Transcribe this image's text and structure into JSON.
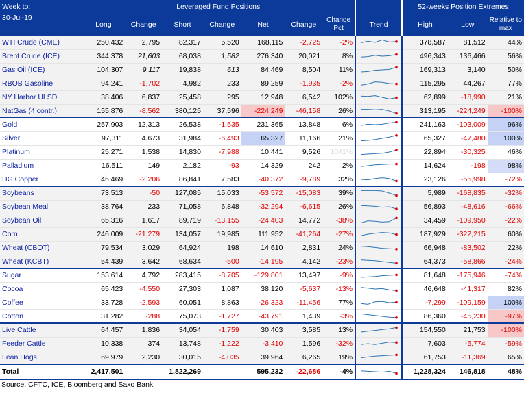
{
  "header": {
    "week_label": "Week to:",
    "week_date": "30-Jul-19",
    "group_title": "Leveraged Fund Positions",
    "extremes_title": "52-weeks Position Extremes",
    "columns": {
      "long": "Long",
      "change1": "Change",
      "short": "Short",
      "change2": "Change",
      "net": "Net",
      "change3": "Change",
      "change_pct_1": "Change",
      "change_pct_2": "Pct",
      "trend": "Trend",
      "high": "High",
      "low": "Low",
      "relative_1": "Relative to",
      "relative_2": "max"
    }
  },
  "rows": [
    {
      "name": "WTI Crude (CME)",
      "long": "250,432",
      "chg_long": "2,795",
      "short": "82,317",
      "chg_short": "5,520",
      "net": "168,115",
      "chg_net": "-2,725",
      "pct": "-2%",
      "high": "378,587",
      "low": "81,512",
      "rel": "44%",
      "group": 0,
      "trend": [
        0.55,
        0.35,
        0.5,
        0.2,
        0.45,
        0.4
      ]
    },
    {
      "name": "Brent Crude (ICE)",
      "long": "344,378",
      "chg_long": "21,603",
      "chg_long_italic": true,
      "short": "68,038",
      "chg_short": "1,582",
      "chg_short_italic": true,
      "net": "276,340",
      "chg_net": "20,021",
      "pct": "8%",
      "high": "496,343",
      "low": "136,466",
      "rel": "56%",
      "group": 0,
      "trend": [
        0.6,
        0.55,
        0.4,
        0.5,
        0.45,
        0.3
      ]
    },
    {
      "name": "Gas Oil (ICE)",
      "long": "104,307",
      "chg_long": "9,117",
      "chg_long_italic": true,
      "short": "19,838",
      "chg_short": "613",
      "chg_short_italic": true,
      "net": "84,469",
      "chg_net": "8,504",
      "pct": "11%",
      "high": "169,313",
      "low": "3,140",
      "rel": "50%",
      "group": 0,
      "trend": [
        0.75,
        0.7,
        0.55,
        0.5,
        0.45,
        0.2
      ]
    },
    {
      "name": "RBOB Gasoline",
      "long": "94,241",
      "chg_long": "-1,702",
      "short": "4,982",
      "chg_short": "233",
      "net": "89,259",
      "chg_net": "-1,935",
      "pct": "-2%",
      "high": "115,295",
      "low": "44,267",
      "rel": "77%",
      "group": 0,
      "trend": [
        0.7,
        0.55,
        0.3,
        0.35,
        0.5,
        0.55
      ]
    },
    {
      "name": "NY Harbor ULSD",
      "long": "38,406",
      "chg_long": "6,837",
      "short": "25,458",
      "chg_short": "295",
      "net": "12,948",
      "chg_net": "6,542",
      "pct": "102%",
      "high": "62,899",
      "low": "-18,990",
      "rel": "21%",
      "group": 0,
      "trend": [
        0.35,
        0.4,
        0.3,
        0.5,
        0.7,
        0.55
      ]
    },
    {
      "name": "NatGas (4 contr.)",
      "long": "155,876",
      "chg_long": "-8,562",
      "short": "380,125",
      "chg_short": "37,596",
      "net": "-224,249",
      "chg_net": "-46,158",
      "pct": "26%",
      "high": "313,195",
      "low": "-224,249",
      "rel": "-100%",
      "rel_hl": "red",
      "net_hl": "red",
      "group": 0,
      "trend": [
        0.3,
        0.3,
        0.35,
        0.3,
        0.5,
        0.8
      ]
    },
    {
      "name": "Gold",
      "long": "257,903",
      "chg_long": "12,313",
      "short": "26,538",
      "chg_short": "-1,535",
      "net": "231,365",
      "chg_net": "13,848",
      "pct": "6%",
      "high": "241,163",
      "low": "-103,009",
      "rel": "96%",
      "rel_hl": "blue",
      "group": 1,
      "start": true,
      "trend": [
        0.6,
        0.45,
        0.5,
        0.45,
        0.3,
        0.2
      ]
    },
    {
      "name": "Silver",
      "long": "97,311",
      "chg_long": "4,673",
      "short": "31,984",
      "chg_short": "-6,493",
      "net": "65,327",
      "chg_net": "11,166",
      "pct": "21%",
      "high": "65,327",
      "low": "-47,480",
      "rel": "100%",
      "rel_hl": "blue",
      "net_hl": "blue",
      "group": 1,
      "trend": [
        0.8,
        0.75,
        0.65,
        0.5,
        0.35,
        0.15
      ]
    },
    {
      "name": "Platinum",
      "long": "25,271",
      "chg_long": "1,538",
      "short": "14,830",
      "chg_short": "-7,988",
      "net": "10,441",
      "chg_net": "9,526",
      "pct": "1041%",
      "pct_ghost": true,
      "high": "22,894",
      "low": "-30,325",
      "rel": "46%",
      "group": 1,
      "trend": [
        0.8,
        0.75,
        0.7,
        0.65,
        0.5,
        0.25
      ]
    },
    {
      "name": "Palladium",
      "long": "16,511",
      "chg_long": "149",
      "short": "2,182",
      "chg_short": "-93",
      "net": "14,329",
      "chg_net": "242",
      "pct": "2%",
      "high": "14,624",
      "low": "-198",
      "rel": "98%",
      "rel_hl": "blue2",
      "group": 1,
      "trend": [
        0.6,
        0.5,
        0.4,
        0.35,
        0.3,
        0.3
      ]
    },
    {
      "name": "HG Copper",
      "long": "46,469",
      "chg_long": "-2,206",
      "short": "86,841",
      "chg_short": "7,583",
      "net": "-40,372",
      "chg_net": "-9,789",
      "pct": "32%",
      "high": "23,126",
      "low": "-55,998",
      "rel": "-72%",
      "group": 1,
      "trend": [
        0.5,
        0.55,
        0.4,
        0.3,
        0.4,
        0.7
      ]
    },
    {
      "name": "Soybeans",
      "long": "73,513",
      "chg_long": "-50",
      "short": "127,085",
      "chg_short": "15,033",
      "net": "-53,572",
      "chg_net": "-15,083",
      "pct": "39%",
      "high": "5,989",
      "low": "-168,835",
      "rel": "-32%",
      "group": 0,
      "start": true,
      "trend": [
        0.2,
        0.2,
        0.2,
        0.25,
        0.5,
        0.8
      ]
    },
    {
      "name": "Soybean Meal",
      "long": "38,764",
      "chg_long": "233",
      "short": "71,058",
      "chg_short": "6,848",
      "net": "-32,294",
      "chg_net": "-6,615",
      "pct": "26%",
      "high": "56,893",
      "low": "-48,616",
      "rel": "-66%",
      "group": 0,
      "trend": [
        0.35,
        0.4,
        0.45,
        0.55,
        0.5,
        0.75
      ]
    },
    {
      "name": "Soybean Oil",
      "long": "65,316",
      "chg_long": "1,617",
      "short": "89,719",
      "chg_short": "-13,155",
      "net": "-24,403",
      "chg_net": "14,772",
      "pct": "-38%",
      "high": "34,459",
      "low": "-109,950",
      "rel": "-22%",
      "group": 0,
      "trend": [
        0.8,
        0.55,
        0.6,
        0.7,
        0.65,
        0.2
      ]
    },
    {
      "name": "Corn",
      "long": "246,009",
      "chg_long": "-21,279",
      "short": "134,057",
      "chg_short": "19,985",
      "net": "111,952",
      "chg_net": "-41,264",
      "pct": "-27%",
      "high": "187,929",
      "low": "-322,215",
      "rel": "60%",
      "group": 0,
      "trend": [
        0.7,
        0.5,
        0.4,
        0.3,
        0.35,
        0.55
      ]
    },
    {
      "name": "Wheat (CBOT)",
      "long": "79,534",
      "chg_long": "3,029",
      "short": "64,924",
      "chg_short": "198",
      "net": "14,610",
      "chg_net": "2,831",
      "pct": "24%",
      "high": "66,948",
      "low": "-83,502",
      "rel": "22%",
      "group": 0,
      "trend": [
        0.3,
        0.35,
        0.45,
        0.55,
        0.6,
        0.65
      ]
    },
    {
      "name": "Wheat (KCBT)",
      "long": "54,439",
      "chg_long": "3,642",
      "short": "68,634",
      "chg_short": "-500",
      "net": "-14,195",
      "chg_net": "4,142",
      "pct": "-23%",
      "high": "64,373",
      "low": "-58,866",
      "rel": "-24%",
      "group": 0,
      "trend": [
        0.3,
        0.35,
        0.4,
        0.5,
        0.6,
        0.7
      ]
    },
    {
      "name": "Sugar",
      "long": "153,614",
      "chg_long": "4,792",
      "short": "283,415",
      "chg_short": "-8,705",
      "net": "-129,801",
      "chg_net": "13,497",
      "pct": "-9%",
      "high": "81,648",
      "low": "-175,946",
      "rel": "-74%",
      "group": 1,
      "start": true,
      "trend": [
        0.75,
        0.7,
        0.65,
        0.55,
        0.5,
        0.45
      ]
    },
    {
      "name": "Cocoa",
      "long": "65,423",
      "chg_long": "-4,550",
      "short": "27,303",
      "chg_short": "1,087",
      "net": "38,120",
      "chg_net": "-5,637",
      "pct": "-13%",
      "high": "46,648",
      "low": "-41,317",
      "rel": "82%",
      "group": 1,
      "trend": [
        0.3,
        0.4,
        0.5,
        0.45,
        0.6,
        0.7
      ]
    },
    {
      "name": "Coffee",
      "long": "33,728",
      "chg_long": "-2,593",
      "short": "60,051",
      "chg_short": "8,863",
      "net": "-26,323",
      "chg_net": "-11,456",
      "pct": "77%",
      "high": "-7,299",
      "low": "-109,159",
      "rel": "100%",
      "rel_hl": "blue",
      "group": 1,
      "trend": [
        0.6,
        0.7,
        0.4,
        0.35,
        0.5,
        0.45
      ]
    },
    {
      "name": "Cotton",
      "long": "31,282",
      "chg_long": "-288",
      "short": "75,073",
      "chg_short": "-1,727",
      "net": "-43,791",
      "chg_net": "1,439",
      "pct": "-3%",
      "high": "86,360",
      "low": "-45,230",
      "rel": "-97%",
      "rel_hl": "red",
      "group": 1,
      "trend": [
        0.2,
        0.3,
        0.4,
        0.5,
        0.6,
        0.65
      ]
    },
    {
      "name": "Live Cattle",
      "long": "64,457",
      "chg_long": "1,836",
      "short": "34,054",
      "chg_short": "-1,759",
      "net": "30,403",
      "chg_net": "3,585",
      "pct": "13%",
      "high": "154,550",
      "low": "21,753",
      "rel": "-100%",
      "rel_hl": "red",
      "group": 0,
      "start": true,
      "trend": [
        0.75,
        0.65,
        0.55,
        0.45,
        0.35,
        0.2
      ]
    },
    {
      "name": "Feeder Cattle",
      "long": "10,338",
      "chg_long": "374",
      "short": "13,748",
      "chg_short": "-1,222",
      "net": "-3,410",
      "chg_net": "1,596",
      "pct": "-32%",
      "high": "7,603",
      "low": "-5,774",
      "rel": "-59%",
      "group": 0,
      "trend": [
        0.6,
        0.5,
        0.6,
        0.45,
        0.3,
        0.35
      ]
    },
    {
      "name": "Lean Hogs",
      "long": "69,979",
      "chg_long": "2,230",
      "short": "30,015",
      "chg_short": "-4,035",
      "net": "39,964",
      "chg_net": "6,265",
      "pct": "19%",
      "high": "61,753",
      "low": "-11,369",
      "rel": "65%",
      "group": 0,
      "trend": [
        0.55,
        0.45,
        0.35,
        0.3,
        0.25,
        0.2
      ]
    }
  ],
  "total": {
    "name": "Total",
    "long": "2,417,501",
    "chg_long": "",
    "short": "1,822,269",
    "chg_short": "",
    "net": "595,232",
    "chg_net": "-22,686",
    "pct": "-4%",
    "high": "1,228,324",
    "low": "146,818",
    "rel": "48%",
    "trend": [
      0.4,
      0.45,
      0.5,
      0.55,
      0.45,
      0.7
    ]
  },
  "source": "Source: CFTC, ICE, Bloomberg and Saxo Bank",
  "colors": {
    "header_bg": "#0b3a9a",
    "name_text": "#0b1fa0",
    "negative": "#e00000",
    "spark_line": "#2e75b6",
    "spark_dot": "#e00000",
    "hl_red": "#f8c7c7",
    "hl_blue": "#c5d2f5"
  }
}
